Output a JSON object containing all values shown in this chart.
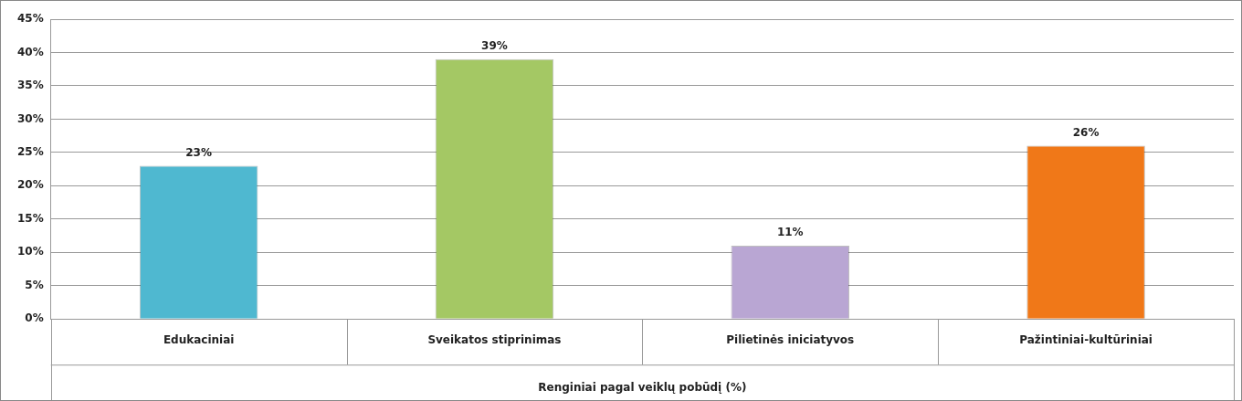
{
  "chart_data": {
    "type": "bar",
    "xlabel": "Renginiai pagal veiklų pobūdį (%)",
    "categories": [
      "Edukaciniai",
      "Sveikatos stiprinimas",
      "Pilietinės iniciatyvos",
      "Pažintiniai-kultūriniai"
    ],
    "values": [
      23,
      39,
      11,
      26
    ],
    "colors": [
      "#4fb8d0",
      "#a4c864",
      "#b9a6d3",
      "#f07818"
    ],
    "ylim": [
      0,
      45
    ],
    "yticks": [
      {
        "value": 0,
        "label": "0%"
      },
      {
        "value": 5,
        "label": "5%"
      },
      {
        "value": 10,
        "label": "10%"
      },
      {
        "value": 15,
        "label": "15%"
      },
      {
        "value": 20,
        "label": "20%"
      },
      {
        "value": 25,
        "label": "25%"
      },
      {
        "value": 30,
        "label": "30%"
      },
      {
        "value": 35,
        "label": "35%"
      },
      {
        "value": 40,
        "label": "40%"
      },
      {
        "value": 45,
        "label": "45%"
      }
    ],
    "value_labels": [
      "23%",
      "39%",
      "11%",
      "26%"
    ],
    "grid": "y",
    "legend": false
  }
}
